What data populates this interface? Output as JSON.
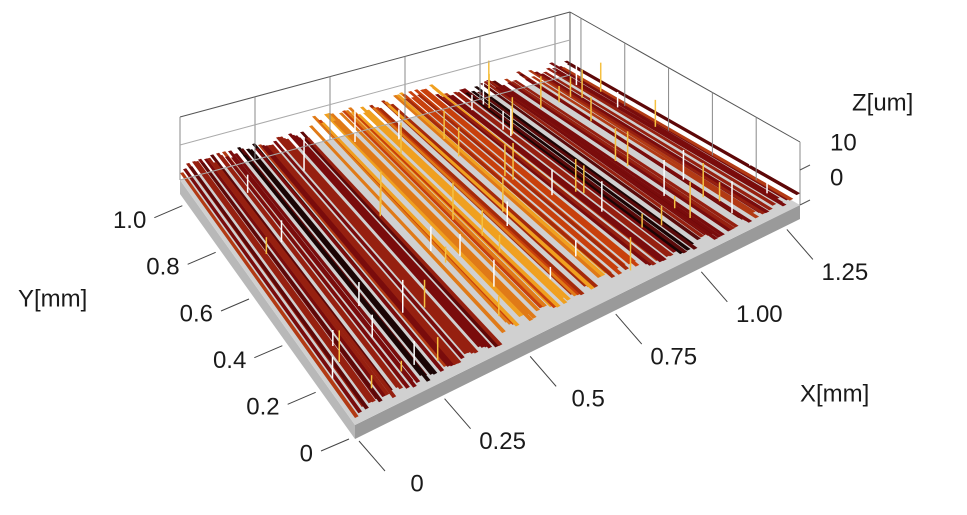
{
  "chart_data": {
    "type": "surface",
    "xlabel": "X[mm]",
    "ylabel": "Y[mm]",
    "zlabel": "Z[um]",
    "xlim": [
      0,
      1.3
    ],
    "ylim": [
      0,
      1.05
    ],
    "zlim": [
      0,
      18
    ],
    "xticks": [
      0,
      0.25,
      0.5,
      0.75,
      {
        "value": 1,
        "label": "1.00"
      },
      1.25
    ],
    "yticks": [
      0,
      0.2,
      0.4,
      0.6,
      0.8,
      {
        "value": 1,
        "label": "1.0"
      }
    ],
    "zticks": [
      0,
      10
    ]
  }
}
